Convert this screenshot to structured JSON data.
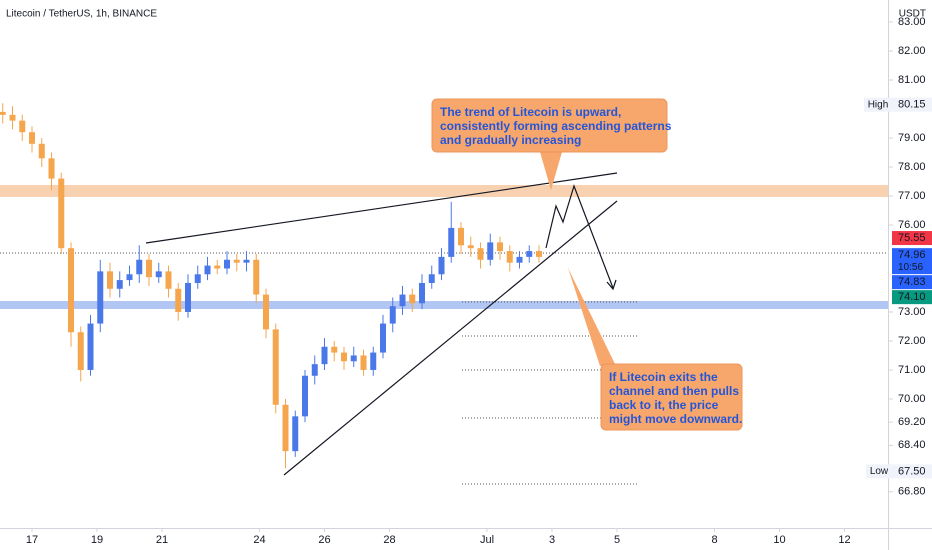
{
  "chart_data": {
    "type": "candlestick",
    "title": "Litecoin / TetherUS, 1h, BINANCE",
    "currency": "USDT",
    "up_color": "#4a78e8",
    "down_color": "#f5a54b",
    "x": [
      16.1,
      16.4,
      16.7,
      17.0,
      17.3,
      17.6,
      17.9,
      18.2,
      18.5,
      18.8,
      19.1,
      19.4,
      19.7,
      20.0,
      20.3,
      20.6,
      20.9,
      21.2,
      21.5,
      21.8,
      22.1,
      22.4,
      22.7,
      23.0,
      23.3,
      23.6,
      23.9,
      24.2,
      24.5,
      24.8,
      25.1,
      25.4,
      25.7,
      26.0,
      26.3,
      26.6,
      26.9,
      27.2,
      27.5,
      27.8,
      28.1,
      28.4,
      28.7,
      29.0,
      29.3,
      29.6,
      29.9,
      30.2,
      30.5,
      30.8,
      31.1,
      31.4,
      31.7,
      32.0,
      32.3,
      32.6
    ],
    "open": [
      79.9,
      79.8,
      79.6,
      79.2,
      78.8,
      78.3,
      77.6,
      75.2,
      72.3,
      71.0,
      72.6,
      74.4,
      73.8,
      74.1,
      74.3,
      74.8,
      74.2,
      74.4,
      73.8,
      73.0,
      74.0,
      74.3,
      74.6,
      74.5,
      74.8,
      74.7,
      74.8,
      73.6,
      72.4,
      69.8,
      68.2,
      69.4,
      70.8,
      71.2,
      71.8,
      71.6,
      71.3,
      71.5,
      71.0,
      71.6,
      72.6,
      73.2,
      73.6,
      73.3,
      74.0,
      74.3,
      74.9,
      75.9,
      75.3,
      75.2,
      74.8,
      75.4,
      75.1,
      74.7,
      74.9,
      75.1
    ],
    "high": [
      80.2,
      80.1,
      79.8,
      79.4,
      79.0,
      78.5,
      77.8,
      75.4,
      72.5,
      72.9,
      74.8,
      74.7,
      74.4,
      74.6,
      75.3,
      75.0,
      74.7,
      74.6,
      74.0,
      74.3,
      74.6,
      74.9,
      74.8,
      75.1,
      75.0,
      75.1,
      75.0,
      73.8,
      72.6,
      70.0,
      69.6,
      71.0,
      71.5,
      72.1,
      72.0,
      71.8,
      71.8,
      71.7,
      71.8,
      72.9,
      73.5,
      73.9,
      73.8,
      74.3,
      74.6,
      75.2,
      76.8,
      76.1,
      75.6,
      75.4,
      75.7,
      75.6,
      75.3,
      75.1,
      75.3,
      75.3
    ],
    "low": [
      79.5,
      79.3,
      78.9,
      78.5,
      78.0,
      77.2,
      75.0,
      71.8,
      70.6,
      70.8,
      72.3,
      73.5,
      73.5,
      73.9,
      74.0,
      73.9,
      74.0,
      73.5,
      72.7,
      72.8,
      73.8,
      74.1,
      74.3,
      74.3,
      74.4,
      74.4,
      73.3,
      72.1,
      69.5,
      67.6,
      68.0,
      69.2,
      70.5,
      71.0,
      71.3,
      71.0,
      71.1,
      70.8,
      70.8,
      71.4,
      72.3,
      72.9,
      73.0,
      73.1,
      73.8,
      74.1,
      74.7,
      75.0,
      74.9,
      74.5,
      74.6,
      74.8,
      74.4,
      74.5,
      74.7,
      74.7
    ],
    "close": [
      79.8,
      79.6,
      79.2,
      78.8,
      78.3,
      77.6,
      75.2,
      72.3,
      71.0,
      72.6,
      74.4,
      73.8,
      74.1,
      74.3,
      74.8,
      74.2,
      74.4,
      73.8,
      73.0,
      74.0,
      74.3,
      74.6,
      74.5,
      74.8,
      74.7,
      74.8,
      73.6,
      72.4,
      69.8,
      68.2,
      69.4,
      70.8,
      71.2,
      71.8,
      71.6,
      71.3,
      71.5,
      71.0,
      71.6,
      72.6,
      73.2,
      73.6,
      73.3,
      74.0,
      74.3,
      74.9,
      75.9,
      75.3,
      75.2,
      74.8,
      75.4,
      75.1,
      74.7,
      74.9,
      75.1,
      74.9
    ],
    "xlim": [
      16,
      43
    ],
    "xticks": [
      17,
      19,
      21,
      24,
      26,
      28,
      {
        "value": 31,
        "label": "Jul"
      },
      {
        "value": 33,
        "label": "3"
      },
      {
        "value": 35,
        "label": "5"
      },
      {
        "value": 38,
        "label": "8"
      },
      {
        "value": 40,
        "label": "10"
      },
      {
        "value": 42,
        "label": "12"
      }
    ],
    "ylim": [
      65.48,
      83.76
    ],
    "yticks": [
      {
        "value": 83,
        "label": "83.00"
      },
      {
        "value": 82,
        "label": "82.00"
      },
      {
        "value": 81,
        "label": "81.00"
      },
      {
        "value": 79,
        "label": "79.00"
      },
      {
        "value": 78,
        "label": "78.00"
      },
      {
        "value": 77,
        "label": "77.00"
      },
      {
        "value": 76,
        "label": "76.00"
      },
      {
        "value": 73,
        "label": "73.00"
      },
      {
        "value": 72,
        "label": "72.00"
      },
      {
        "value": 71,
        "label": "71.00"
      },
      {
        "value": 70,
        "label": "70.00"
      },
      {
        "value": 69.2,
        "label": "69.20"
      },
      {
        "value": 68.4,
        "label": "68.40"
      },
      {
        "value": 66.8,
        "label": "66.80"
      }
    ],
    "grid": false,
    "high_label": "High",
    "high_value": 80.15,
    "low_label": "Low",
    "low_value": {
      "value": 67.5,
      "label": "67.50"
    },
    "price_tags": [
      {
        "value": 75.55,
        "color": "#f23645"
      },
      {
        "value": 74.96,
        "color": "#2962ff",
        "sub": "10:56"
      },
      {
        "value": 74.83,
        "color": "#2962ff"
      },
      {
        "value": {
          "value": 74.1,
          "label": "74.10"
        },
        "color": "#089981"
      }
    ],
    "annotations": [
      {
        "lines": [
          "The trend of Litecoin is upward,",
          "consistently forming ascending patterns",
          "and gradually increasing"
        ]
      },
      {
        "lines": [
          "If Litecoin exits the",
          "channel and then pulls",
          "back to it, the price",
          "might move downward."
        ]
      }
    ]
  }
}
